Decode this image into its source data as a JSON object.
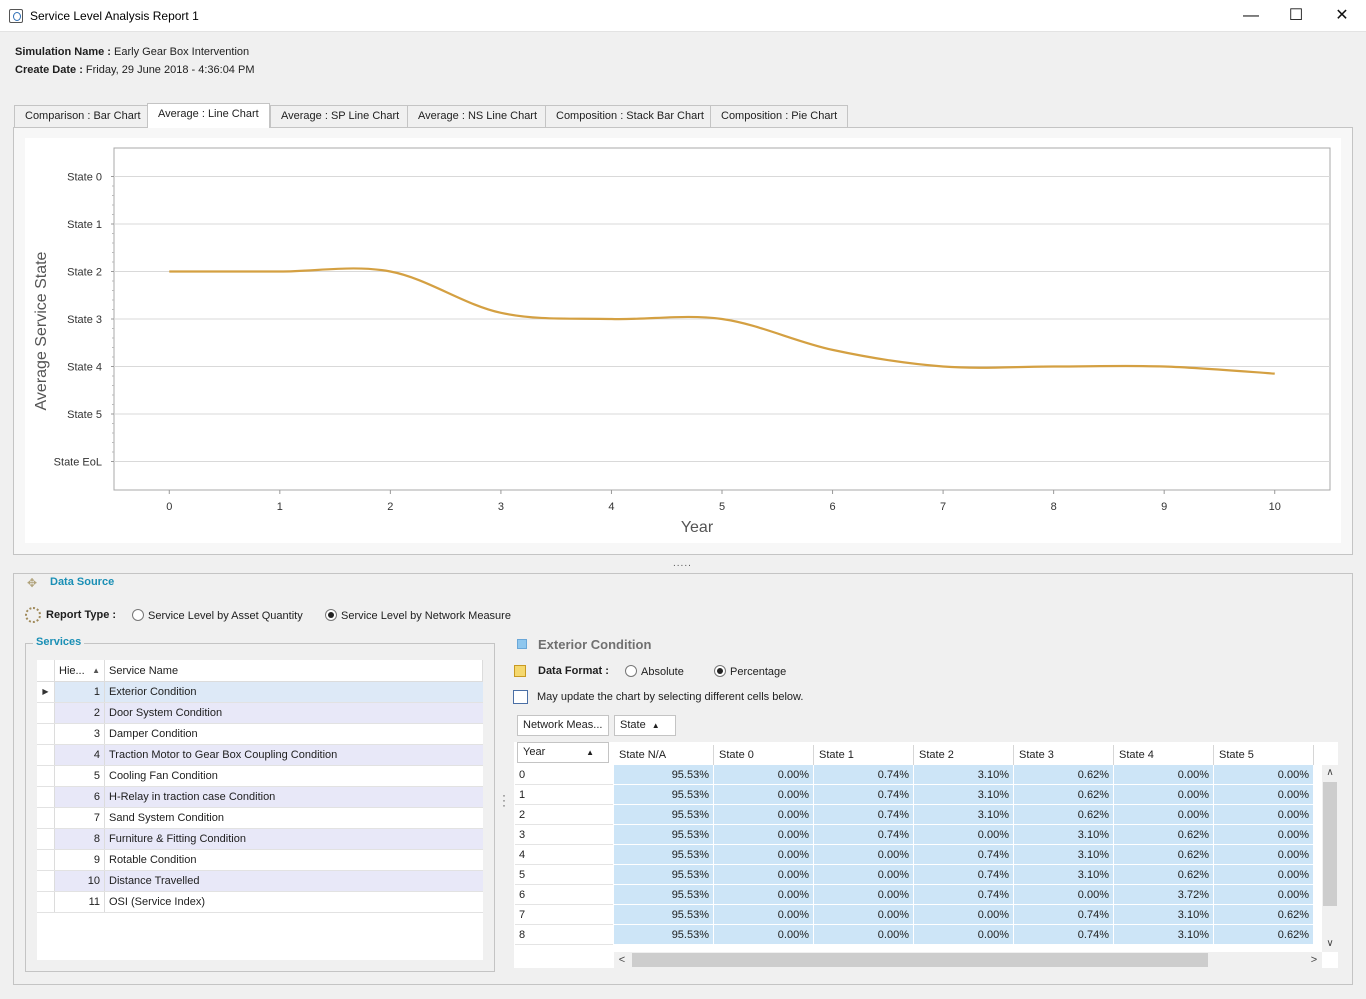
{
  "window": {
    "title": "Service Level Analysis Report 1",
    "minimize": "—",
    "maximize": "☐",
    "close": "✕"
  },
  "simulation": {
    "name_label": "Simulation Name :",
    "name_value": "Early Gear Box Intervention",
    "date_label": "Create Date :",
    "date_value": "Friday, 29 June 2018 - 4:36:04 PM"
  },
  "tabs": [
    {
      "label": "Comparison : Bar Chart",
      "active": false
    },
    {
      "label": "Average : Line Chart",
      "active": true
    },
    {
      "label": "Average : SP Line Chart",
      "active": false
    },
    {
      "label": "Average : NS Line Chart",
      "active": false
    },
    {
      "label": "Composition : Stack Bar Chart",
      "active": false
    },
    {
      "label": "Composition : Pie Chart",
      "active": false
    }
  ],
  "chart_data": {
    "type": "line",
    "xlabel": "Year",
    "ylabel": "Average Service State",
    "x": [
      0,
      1,
      2,
      3,
      4,
      5,
      6,
      7,
      8,
      9,
      10
    ],
    "y_categories": [
      "State 0",
      "State 1",
      "State 2",
      "State 3",
      "State 4",
      "State 5",
      "State EoL"
    ],
    "series": [
      {
        "values": [
          2.0,
          2.0,
          2.0,
          2.87,
          3.0,
          3.0,
          3.65,
          4.0,
          4.0,
          4.0,
          4.15
        ]
      }
    ],
    "ylim": [
      -0.6,
      6.6
    ],
    "xlim": [
      -0.5,
      10.5
    ],
    "grid": true,
    "line_color": "#d4a042"
  },
  "data_source": {
    "title": "Data Source",
    "report_type_label": "Report Type :",
    "report_options": [
      {
        "label": "Service Level by Asset Quantity",
        "checked": false
      },
      {
        "label": "Service Level by Network Measure",
        "checked": true
      }
    ]
  },
  "services": {
    "title": "Services",
    "col_hier": "Hie...",
    "col_name": "Service Name",
    "sort_icon": "▲",
    "row_indicator": "▶",
    "rows": [
      {
        "id": "1",
        "name": "Exterior Condition"
      },
      {
        "id": "2",
        "name": "Door System Condition"
      },
      {
        "id": "3",
        "name": "Damper Condition"
      },
      {
        "id": "4",
        "name": "Traction Motor to Gear Box Coupling Condition"
      },
      {
        "id": "5",
        "name": "Cooling Fan Condition"
      },
      {
        "id": "6",
        "name": "H-Relay in traction case Condition"
      },
      {
        "id": "7",
        "name": "Sand System Condition"
      },
      {
        "id": "8",
        "name": "Furniture & Fitting Condition"
      },
      {
        "id": "9",
        "name": "Rotable Condition"
      },
      {
        "id": "10",
        "name": "Distance Travelled"
      },
      {
        "id": "11",
        "name": "OSI (Service Index)"
      }
    ]
  },
  "detail": {
    "service_title": "Exterior Condition",
    "data_format_label": "Data Format :",
    "format_options": [
      {
        "label": "Absolute",
        "checked": false
      },
      {
        "label": "Percentage",
        "checked": true
      }
    ],
    "hint": "May update the chart by selecting different cells below.",
    "pivot_network": "Network Meas...",
    "pivot_state": "State",
    "pivot_year": "Year",
    "sort_icon": "▲",
    "columns": [
      "State N/A",
      "State 0",
      "State 1",
      "State 2",
      "State 3",
      "State 4",
      "State 5"
    ],
    "rows": [
      {
        "year": "0",
        "values": [
          "95.53%",
          "0.00%",
          "0.74%",
          "3.10%",
          "0.62%",
          "0.00%",
          "0.00%"
        ]
      },
      {
        "year": "1",
        "values": [
          "95.53%",
          "0.00%",
          "0.74%",
          "3.10%",
          "0.62%",
          "0.00%",
          "0.00%"
        ]
      },
      {
        "year": "2",
        "values": [
          "95.53%",
          "0.00%",
          "0.74%",
          "3.10%",
          "0.62%",
          "0.00%",
          "0.00%"
        ]
      },
      {
        "year": "3",
        "values": [
          "95.53%",
          "0.00%",
          "0.74%",
          "0.00%",
          "3.10%",
          "0.62%",
          "0.00%"
        ]
      },
      {
        "year": "4",
        "values": [
          "95.53%",
          "0.00%",
          "0.00%",
          "0.74%",
          "3.10%",
          "0.62%",
          "0.00%"
        ]
      },
      {
        "year": "5",
        "values": [
          "95.53%",
          "0.00%",
          "0.00%",
          "0.74%",
          "3.10%",
          "0.62%",
          "0.00%"
        ]
      },
      {
        "year": "6",
        "values": [
          "95.53%",
          "0.00%",
          "0.00%",
          "0.74%",
          "0.00%",
          "3.72%",
          "0.00%"
        ]
      },
      {
        "year": "7",
        "values": [
          "95.53%",
          "0.00%",
          "0.00%",
          "0.00%",
          "0.74%",
          "3.10%",
          "0.62%"
        ]
      },
      {
        "year": "8",
        "values": [
          "95.53%",
          "0.00%",
          "0.00%",
          "0.00%",
          "0.74%",
          "3.10%",
          "0.62%"
        ]
      }
    ],
    "scroll_up": "∧",
    "scroll_down": "∨",
    "scroll_left": "<",
    "scroll_right": ">"
  },
  "colors": {
    "accent": "#1a8fb5",
    "cell_highlight": "#cde5f7",
    "alt_row": "#e8e8f8"
  }
}
